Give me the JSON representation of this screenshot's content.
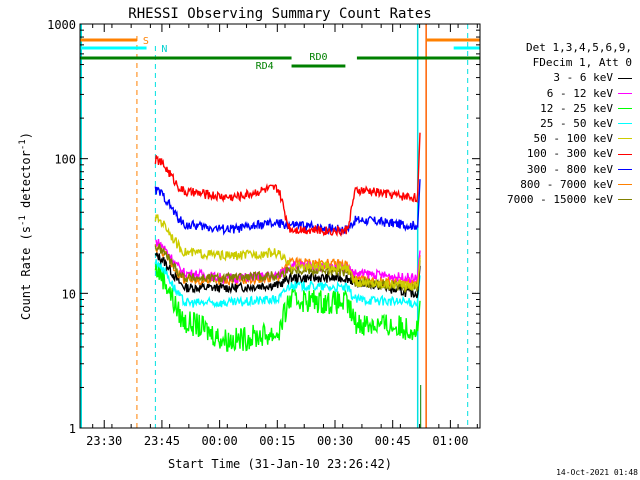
{
  "chart_data": {
    "type": "line",
    "title": "RHESSI Observing Summary Count Rates",
    "xlabel": "Start Time (31-Jan-10 23:26:42)",
    "ylabel": "Count Rate (s",
    "ylabel_sup": "-1",
    "ylabel_tail": " detector",
    "ylabel_end": ")",
    "yscale": "log",
    "ylim": [
      1,
      1000
    ],
    "xlim_minutes": [
      -3,
      101
    ],
    "y_ticks": [
      {
        "value": 1,
        "label": "1"
      },
      {
        "value": 10,
        "label": "10"
      },
      {
        "value": 100,
        "label": "100"
      },
      {
        "value": 1000,
        "label": "1000"
      }
    ],
    "x_ticks": [
      {
        "min": 3.3,
        "label": "23:30"
      },
      {
        "min": 18.3,
        "label": "23:45"
      },
      {
        "min": 33.3,
        "label": "00:00"
      },
      {
        "min": 48.3,
        "label": "00:15"
      },
      {
        "min": 63.3,
        "label": "00:30"
      },
      {
        "min": 78.3,
        "label": "00:45"
      },
      {
        "min": 93.3,
        "label": "01:00"
      }
    ],
    "legend_header": [
      "Det 1,3,4,5,6,9,",
      "FDecim 1, Att 0"
    ],
    "series": [
      {
        "name": "3 - 6 keV",
        "color": "#000000",
        "day": [
          19,
          11,
          11,
          11.5,
          13,
          13,
          12,
          10
        ]
      },
      {
        "name": "6 - 12 keV",
        "color": "#ff00ff",
        "day": [
          24,
          14,
          13,
          13.5,
          16,
          15.5,
          14,
          13
        ]
      },
      {
        "name": "12 - 25 keV",
        "color": "#00ff00",
        "day": [
          15,
          6,
          4.5,
          5,
          9,
          8.5,
          6,
          5.5
        ]
      },
      {
        "name": "25 - 50 keV",
        "color": "#00ffff",
        "day": [
          17,
          8.5,
          8.5,
          9,
          11.5,
          11,
          9,
          8.5
        ]
      },
      {
        "name": "50 - 100 keV",
        "color": "#cccc00",
        "day": [
          36,
          20,
          19,
          20,
          16,
          15.5,
          12,
          11.5
        ]
      },
      {
        "name": "100 - 300 keV",
        "color": "#ff0000",
        "day": [
          98,
          56,
          52,
          60,
          30,
          29,
          58,
          52
        ]
      },
      {
        "name": "300 - 800 keV",
        "color": "#0000ff",
        "day": [
          58,
          32,
          30,
          33,
          32,
          30,
          35,
          32
        ]
      },
      {
        "name": "800 - 7000 keV",
        "color": "#ff8000",
        "day": [
          22,
          12.5,
          12.5,
          13,
          17,
          16.5,
          12.5,
          12
        ]
      },
      {
        "name": "7000 - 15000 keV",
        "color": "#808000",
        "day": [
          22,
          13,
          13,
          13.5,
          15,
          14.5,
          12,
          11
        ]
      }
    ],
    "day_knots_minutes": [
      16.6,
      25,
      36,
      48,
      52,
      66,
      69,
      84.8
    ],
    "flag_labels": {
      "saa": "S",
      "night": "N",
      "rd0": "RD0",
      "rd4": "RD4"
    },
    "stamp": "14-Oct-2021 01:48"
  }
}
